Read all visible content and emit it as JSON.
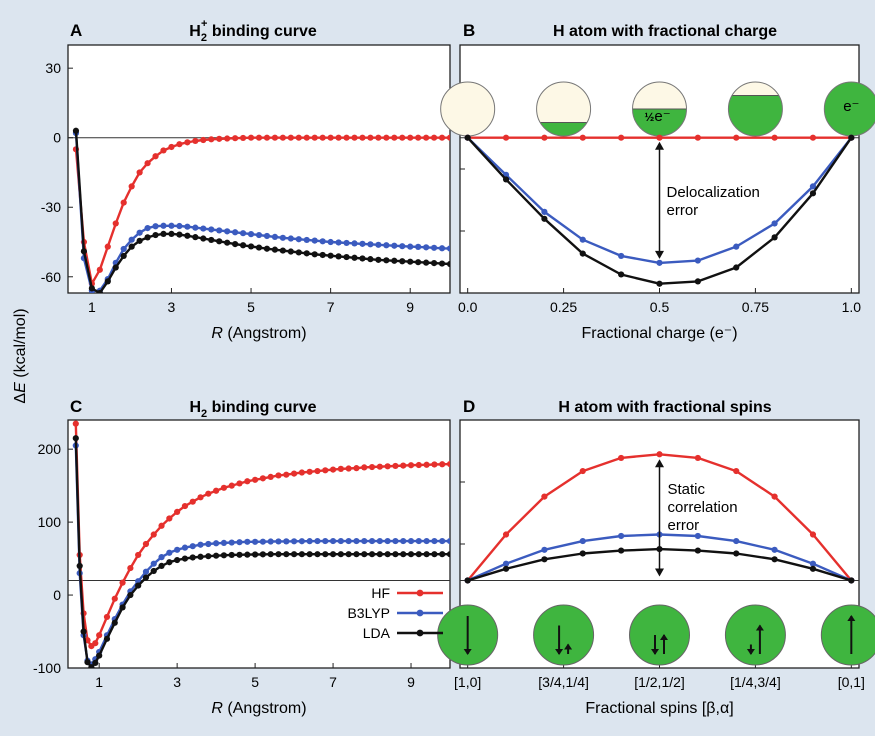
{
  "colors": {
    "HF": "#e5302d",
    "B3LYP": "#3b5bbf",
    "LDA": "#111111",
    "background": "#dce5ef",
    "green": "#3fb53f",
    "circle_empty": "#fdf8e6"
  },
  "y_axis_label": "ΔE (kcal/mol)",
  "legend": [
    "HF",
    "B3LYP",
    "LDA"
  ],
  "chart_data": [
    {
      "panel": "A",
      "type": "line",
      "title": "H2+ binding curve",
      "title_main": "H",
      "title_sub": "2",
      "title_sup": "+",
      "title_rest": " binding curve",
      "xlabel_italic": "R",
      "xlabel_rest": " (Angstrom)",
      "xlim": [
        0.4,
        10
      ],
      "ylim": [
        -67,
        40
      ],
      "xticks": [
        1,
        3,
        5,
        7,
        9
      ],
      "yticks": [
        -60,
        -30,
        0,
        30
      ],
      "grid": false,
      "zero_line": 0,
      "series": [
        {
          "name": "HF",
          "x": [
            0.6,
            0.8,
            1.0,
            1.2,
            1.4,
            1.6,
            1.8,
            2.0,
            2.2,
            2.4,
            2.6,
            2.8,
            3.0,
            3.2,
            3.4,
            3.6,
            3.8,
            4.0,
            4.2,
            4.4,
            4.6,
            4.8,
            5.0,
            5.2,
            5.4,
            5.6,
            5.8,
            6.0,
            6.2,
            6.4,
            6.6,
            6.8,
            7.0,
            7.2,
            7.4,
            7.6,
            7.8,
            8.0,
            8.2,
            8.4,
            8.6,
            8.8,
            9.0,
            9.2,
            9.4,
            9.6,
            9.8,
            10.0
          ],
          "y": [
            -5,
            -45,
            -63,
            -57,
            -47,
            -37,
            -28,
            -21,
            -15,
            -11,
            -8,
            -5.5,
            -4,
            -2.8,
            -2,
            -1.4,
            -1,
            -0.7,
            -0.5,
            -0.35,
            -0.2,
            -0.1,
            0,
            0,
            0,
            0,
            0,
            0,
            0,
            0,
            0,
            0,
            0,
            0,
            0,
            0,
            0,
            0,
            0,
            0,
            0,
            0,
            0,
            0,
            0,
            0,
            0,
            0
          ]
        },
        {
          "name": "B3LYP",
          "x": [
            0.6,
            0.8,
            1.0,
            1.2,
            1.4,
            1.6,
            1.8,
            2.0,
            2.2,
            2.4,
            2.6,
            2.8,
            3.0,
            3.2,
            3.4,
            3.6,
            3.8,
            4.0,
            4.2,
            4.4,
            4.6,
            4.8,
            5.0,
            5.2,
            5.4,
            5.6,
            5.8,
            6.0,
            6.2,
            6.4,
            6.6,
            6.8,
            7.0,
            7.2,
            7.4,
            7.6,
            7.8,
            8.0,
            8.2,
            8.4,
            8.6,
            8.8,
            9.0,
            9.2,
            9.4,
            9.6,
            9.8,
            10.0
          ],
          "y": [
            2,
            -52,
            -66,
            -66,
            -61,
            -54,
            -48,
            -44,
            -41,
            -39,
            -38.2,
            -38,
            -38,
            -38.1,
            -38.4,
            -38.8,
            -39.2,
            -39.6,
            -40,
            -40.4,
            -40.8,
            -41.2,
            -41.6,
            -42,
            -42.4,
            -42.8,
            -43.2,
            -43.5,
            -43.8,
            -44.1,
            -44.4,
            -44.7,
            -45,
            -45.2,
            -45.4,
            -45.6,
            -45.8,
            -46,
            -46.2,
            -46.4,
            -46.6,
            -46.8,
            -47,
            -47.1,
            -47.3,
            -47.5,
            -47.7,
            -47.8
          ]
        },
        {
          "name": "LDA",
          "x": [
            0.6,
            0.8,
            1.0,
            1.2,
            1.4,
            1.6,
            1.8,
            2.0,
            2.2,
            2.4,
            2.6,
            2.8,
            3.0,
            3.2,
            3.4,
            3.6,
            3.8,
            4.0,
            4.2,
            4.4,
            4.6,
            4.8,
            5.0,
            5.2,
            5.4,
            5.6,
            5.8,
            6.0,
            6.2,
            6.4,
            6.6,
            6.8,
            7.0,
            7.2,
            7.4,
            7.6,
            7.8,
            8.0,
            8.2,
            8.4,
            8.6,
            8.8,
            9.0,
            9.2,
            9.4,
            9.6,
            9.8,
            10.0
          ],
          "y": [
            3,
            -49,
            -65,
            -67,
            -62,
            -56,
            -51,
            -47,
            -44.5,
            -43,
            -42,
            -41.5,
            -41.5,
            -41.8,
            -42.3,
            -42.9,
            -43.5,
            -44.1,
            -44.7,
            -45.3,
            -45.9,
            -46.4,
            -46.9,
            -47.4,
            -47.9,
            -48.3,
            -48.7,
            -49.1,
            -49.5,
            -49.9,
            -50.3,
            -50.6,
            -50.9,
            -51.2,
            -51.5,
            -51.8,
            -52.1,
            -52.4,
            -52.7,
            -52.9,
            -53.1,
            -53.3,
            -53.5,
            -53.7,
            -53.9,
            -54.1,
            -54.3,
            -54.5
          ]
        }
      ]
    },
    {
      "panel": "B",
      "type": "line",
      "title": "H atom with fractional charge",
      "xlabel": "Fractional charge (e⁻)",
      "xlim": [
        -0.02,
        1.02
      ],
      "ylim": [
        -67,
        40
      ],
      "xticks": [
        "0.0",
        "0.25",
        "0.5",
        "0.75",
        "1.0"
      ],
      "xtick_values": [
        0,
        0.25,
        0.5,
        0.75,
        1.0
      ],
      "grid": false,
      "zero_line": 0,
      "annotation": [
        "Delocalization",
        "error"
      ],
      "circle_labels": [
        "",
        "",
        "½e⁻",
        "",
        "e⁻"
      ],
      "circle_fill_fractions": [
        0,
        0.25,
        0.5,
        0.75,
        1
      ],
      "series": [
        {
          "name": "HF",
          "x": [
            0,
            0.1,
            0.2,
            0.3,
            0.4,
            0.5,
            0.6,
            0.7,
            0.8,
            0.9,
            1.0
          ],
          "y": [
            0,
            0,
            0,
            0,
            0,
            0,
            0,
            0,
            0,
            0,
            0
          ]
        },
        {
          "name": "B3LYP",
          "x": [
            0,
            0.1,
            0.2,
            0.3,
            0.4,
            0.5,
            0.6,
            0.7,
            0.8,
            0.9,
            1.0
          ],
          "y": [
            0,
            -16,
            -32,
            -44,
            -51,
            -54,
            -53,
            -47,
            -37,
            -21,
            0
          ]
        },
        {
          "name": "LDA",
          "x": [
            0,
            0.1,
            0.2,
            0.3,
            0.4,
            0.5,
            0.6,
            0.7,
            0.8,
            0.9,
            1.0
          ],
          "y": [
            0,
            -18,
            -35,
            -50,
            -59,
            -63,
            -62,
            -56,
            -43,
            -24,
            0
          ]
        }
      ]
    },
    {
      "panel": "C",
      "type": "line",
      "title": "H2 binding curve",
      "title_main": "H",
      "title_sub": "2",
      "title_rest": " binding curve",
      "xlabel_italic": "R",
      "xlabel_rest": " (Angstrom)",
      "xlim": [
        0.2,
        10
      ],
      "ylim": [
        -100,
        240
      ],
      "xticks": [
        1,
        3,
        5,
        7,
        9
      ],
      "yticks": [
        -100,
        0,
        100,
        200
      ],
      "grid": false,
      "zero_line": 20,
      "series": [
        {
          "name": "HF",
          "x": [
            0.4,
            0.5,
            0.6,
            0.7,
            0.8,
            0.9,
            1.0,
            1.2,
            1.4,
            1.6,
            1.8,
            2.0,
            2.2,
            2.4,
            2.6,
            2.8,
            3.0,
            3.2,
            3.4,
            3.6,
            3.8,
            4.0,
            4.2,
            4.4,
            4.6,
            4.8,
            5.0,
            5.2,
            5.4,
            5.6,
            5.8,
            6.0,
            6.2,
            6.4,
            6.6,
            6.8,
            7.0,
            7.2,
            7.4,
            7.6,
            7.8,
            8.0,
            8.2,
            8.4,
            8.6,
            8.8,
            9.0,
            9.2,
            9.4,
            9.6,
            9.8,
            10.0
          ],
          "y": [
            235,
            55,
            -25,
            -62,
            -70,
            -66,
            -55,
            -30,
            -5,
            17,
            37,
            55,
            70,
            83,
            95,
            105,
            114,
            122,
            128,
            134,
            139,
            143,
            147,
            150,
            153,
            156,
            158,
            160,
            162,
            164,
            165,
            166.5,
            168,
            169,
            170,
            171,
            172,
            173,
            173.5,
            174,
            175,
            175.5,
            176,
            176.5,
            177,
            177.5,
            178,
            178.3,
            178.6,
            179,
            179.3,
            179.6
          ]
        },
        {
          "name": "B3LYP",
          "x": [
            0.4,
            0.5,
            0.6,
            0.7,
            0.8,
            0.9,
            1.0,
            1.2,
            1.4,
            1.6,
            1.8,
            2.0,
            2.2,
            2.4,
            2.6,
            2.8,
            3.0,
            3.2,
            3.4,
            3.6,
            3.8,
            4.0,
            4.2,
            4.4,
            4.6,
            4.8,
            5.0,
            5.2,
            5.4,
            5.6,
            5.8,
            6.0,
            6.2,
            6.4,
            6.6,
            6.8,
            7.0,
            7.2,
            7.4,
            7.6,
            7.8,
            8.0,
            8.2,
            8.4,
            8.6,
            8.8,
            9.0,
            9.2,
            9.4,
            9.6,
            9.8,
            10.0
          ],
          "y": [
            205,
            30,
            -55,
            -90,
            -95,
            -88,
            -78,
            -55,
            -33,
            -13,
            5,
            19,
            32,
            43,
            52,
            58,
            62,
            65,
            67,
            69,
            70,
            71,
            71.5,
            72,
            72.5,
            73,
            73,
            73.2,
            73.4,
            73.5,
            73.6,
            73.7,
            73.8,
            73.9,
            74,
            74,
            74,
            74,
            74,
            74,
            74,
            74,
            74,
            74,
            74,
            74,
            74,
            74,
            74,
            74,
            74,
            74
          ]
        },
        {
          "name": "LDA",
          "x": [
            0.4,
            0.5,
            0.6,
            0.7,
            0.8,
            0.9,
            1.0,
            1.2,
            1.4,
            1.6,
            1.8,
            2.0,
            2.2,
            2.4,
            2.6,
            2.8,
            3.0,
            3.2,
            3.4,
            3.6,
            3.8,
            4.0,
            4.2,
            4.4,
            4.6,
            4.8,
            5.0,
            5.2,
            5.4,
            5.6,
            5.8,
            6.0,
            6.2,
            6.4,
            6.6,
            6.8,
            7.0,
            7.2,
            7.4,
            7.6,
            7.8,
            8.0,
            8.2,
            8.4,
            8.6,
            8.8,
            9.0,
            9.2,
            9.4,
            9.6,
            9.8,
            10.0
          ],
          "y": [
            215,
            40,
            -50,
            -92,
            -99,
            -93,
            -83,
            -60,
            -38,
            -17,
            0,
            13,
            24,
            33,
            40,
            45,
            48,
            50,
            51.5,
            52.5,
            53.3,
            54,
            54.5,
            55,
            55.2,
            55.4,
            55.6,
            55.8,
            56,
            56,
            56,
            56,
            56,
            56,
            56,
            56,
            56,
            56,
            56,
            56,
            56,
            56,
            56,
            56,
            56,
            56,
            56,
            56,
            56,
            56,
            56,
            56
          ]
        }
      ]
    },
    {
      "panel": "D",
      "type": "line",
      "title": "H atom with fractional spins",
      "xlabel": "Fractional spins [β,α]",
      "xlim": [
        -0.02,
        1.02
      ],
      "ylim": [
        -100,
        240
      ],
      "xticks": [
        "[1,0]",
        "[3/4,1/4]",
        "[1/2,1/2]",
        "[1/4,3/4]",
        "[0,1]"
      ],
      "xtick_values": [
        0,
        0.25,
        0.5,
        0.75,
        1.0
      ],
      "grid": false,
      "zero_line": 20,
      "annotation": [
        "Static",
        "correlation",
        "error"
      ],
      "spin_states": [
        [
          1,
          0
        ],
        [
          0.75,
          0.25
        ],
        [
          0.5,
          0.5
        ],
        [
          0.25,
          0.75
        ],
        [
          0,
          1
        ]
      ],
      "series": [
        {
          "name": "HF",
          "x": [
            0,
            0.1,
            0.2,
            0.3,
            0.4,
            0.5,
            0.6,
            0.7,
            0.8,
            0.9,
            1.0
          ],
          "y": [
            20,
            83,
            135,
            170,
            188,
            193,
            188,
            170,
            135,
            83,
            20
          ]
        },
        {
          "name": "B3LYP",
          "x": [
            0,
            0.1,
            0.2,
            0.3,
            0.4,
            0.5,
            0.6,
            0.7,
            0.8,
            0.9,
            1.0
          ],
          "y": [
            20,
            43,
            62,
            74,
            81,
            83,
            81,
            74,
            62,
            43,
            20
          ]
        },
        {
          "name": "LDA",
          "x": [
            0,
            0.1,
            0.2,
            0.3,
            0.4,
            0.5,
            0.6,
            0.7,
            0.8,
            0.9,
            1.0
          ],
          "y": [
            20,
            36,
            49,
            57,
            61,
            63,
            61,
            57,
            49,
            36,
            20
          ]
        }
      ]
    }
  ]
}
